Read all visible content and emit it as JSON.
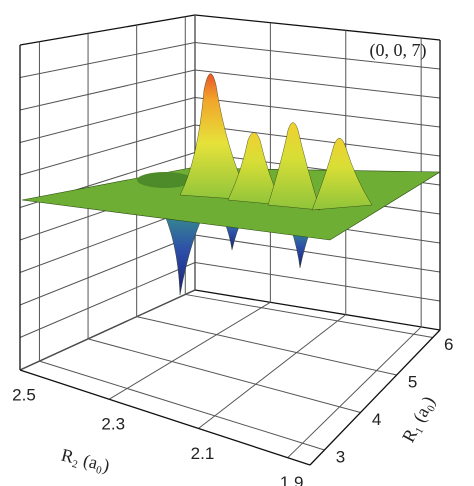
{
  "chart_data": {
    "type": "surface3d",
    "annotation": "(0, 0, 7)",
    "xlabel": "R₂ (a₀)",
    "ylabel": "R₁ (a₀)",
    "xlim": [
      2.5,
      1.85
    ],
    "xticks": [
      2.5,
      2.3,
      2.1,
      1.9
    ],
    "ylim": [
      2.6,
      6.2
    ],
    "yticks": [
      3,
      4,
      5,
      6
    ],
    "grid": true
  }
}
